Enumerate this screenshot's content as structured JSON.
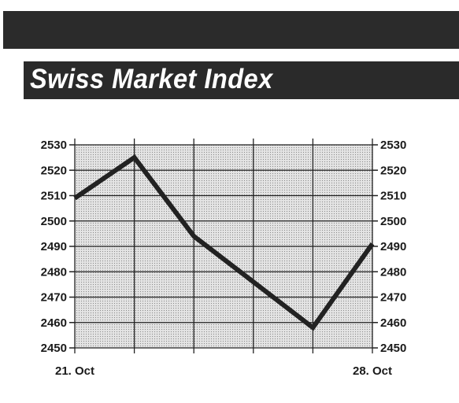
{
  "title": "Swiss Market Index",
  "chart_data": {
    "type": "line",
    "title": "Swiss Market Index",
    "xlabel": "",
    "ylabel": "",
    "x_tick_labels": [
      "21. Oct",
      "",
      "",
      "",
      "",
      "28. Oct"
    ],
    "y_ticks": [
      2450,
      2460,
      2470,
      2480,
      2490,
      2500,
      2510,
      2520,
      2530
    ],
    "ylim": [
      2450,
      2530
    ],
    "grid": true,
    "y_axis_both_sides": true,
    "series": [
      {
        "values": [
          2509,
          2525,
          2494,
          2476,
          2458,
          2491
        ]
      }
    ],
    "colors": {
      "plot_background": "#d9d9d9",
      "line": "#222222",
      "grid": "#222222"
    }
  }
}
